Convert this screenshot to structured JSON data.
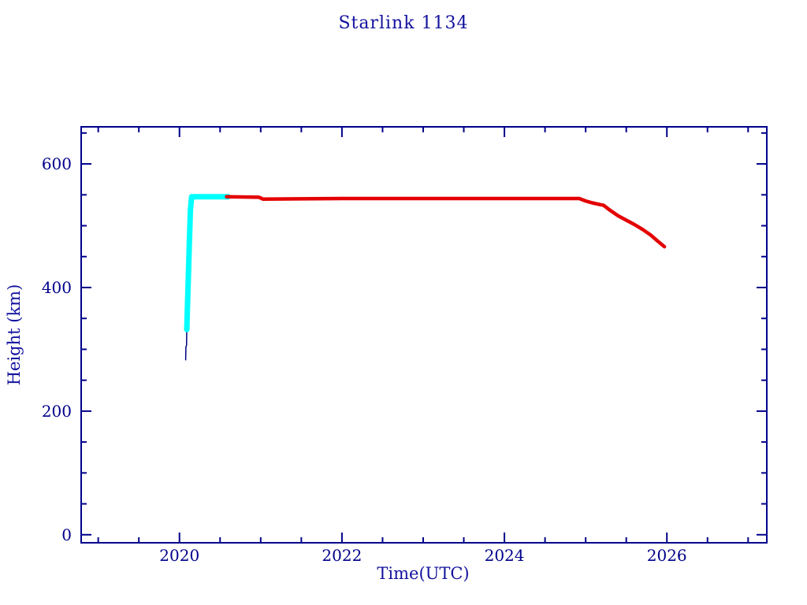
{
  "colors": {
    "text": "#12129e",
    "axis": "#00008b",
    "launch_line": "#000080",
    "raise_line": "#00ffff",
    "main_line": "#e40000",
    "background": "#ffffff"
  },
  "chart_data": {
    "type": "line",
    "title": "Starlink 1134",
    "xlabel": "Time(UTC)",
    "ylabel": "Height (km)",
    "xlim": [
      2018.79,
      2027.23
    ],
    "ylim": [
      -13,
      660
    ],
    "x_major_ticks": [
      2020,
      2022,
      2024,
      2026
    ],
    "x_tick_labels": [
      "2020",
      "2022",
      "2024",
      "2026"
    ],
    "x_minor_step": 0.5,
    "y_major_ticks": [
      0,
      200,
      400,
      600
    ],
    "y_tick_labels": [
      "0",
      "200",
      "400",
      "600"
    ],
    "y_minor_step": 50,
    "grid": false,
    "legend": "none",
    "series": [
      {
        "name": "launch-ascent-line",
        "color": "#000080",
        "width": 1.5,
        "points": [
          [
            2020.076,
            283
          ],
          [
            2020.079,
            304
          ],
          [
            2020.087,
            306
          ],
          [
            2020.09,
            332
          ]
        ]
      },
      {
        "name": "orbit-raise-line",
        "color": "#00ffff",
        "width": 7,
        "points": [
          [
            2020.09,
            332
          ],
          [
            2020.105,
            400
          ],
          [
            2020.12,
            465
          ],
          [
            2020.135,
            525
          ],
          [
            2020.15,
            547
          ],
          [
            2020.6,
            547
          ]
        ]
      },
      {
        "name": "on-station-decay-line",
        "color": "#e40000",
        "width": 4.5,
        "points": [
          [
            2020.58,
            547
          ],
          [
            2020.98,
            546
          ],
          [
            2021.03,
            543
          ],
          [
            2021.5,
            543.5
          ],
          [
            2022.0,
            544
          ],
          [
            2022.5,
            544
          ],
          [
            2023.0,
            544
          ],
          [
            2023.5,
            544
          ],
          [
            2024.0,
            544
          ],
          [
            2024.5,
            544
          ],
          [
            2024.92,
            544
          ],
          [
            2025.0,
            540
          ],
          [
            2025.08,
            537
          ],
          [
            2025.15,
            535
          ],
          [
            2025.22,
            533
          ],
          [
            2025.3,
            525
          ],
          [
            2025.4,
            516
          ],
          [
            2025.5,
            509
          ],
          [
            2025.6,
            502
          ],
          [
            2025.7,
            494
          ],
          [
            2025.8,
            485
          ],
          [
            2025.88,
            476
          ],
          [
            2025.97,
            466
          ]
        ]
      }
    ]
  }
}
